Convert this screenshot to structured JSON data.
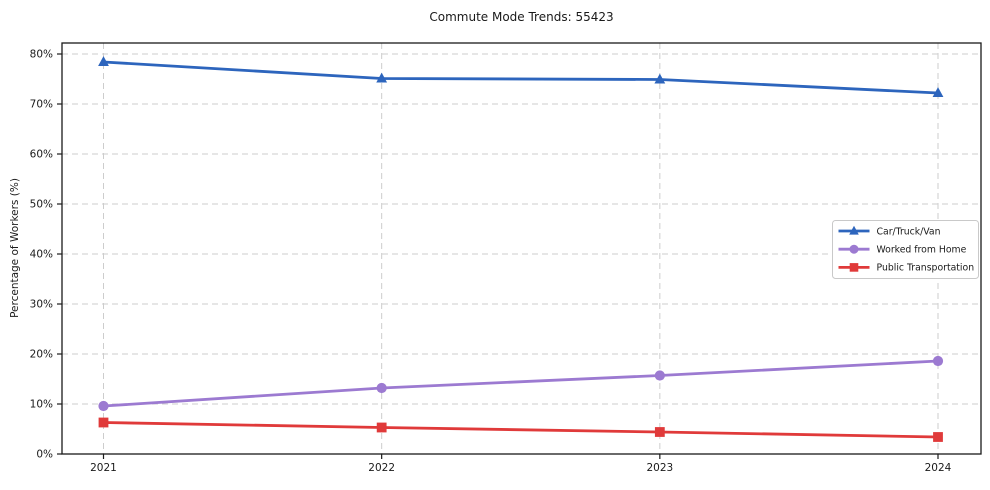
{
  "chart_data": {
    "type": "line",
    "title": "Commute Mode Trends: 55423",
    "xlabel": "",
    "ylabel": "Percentage of Workers (%)",
    "x": [
      "2021",
      "2022",
      "2023",
      "2024"
    ],
    "series": [
      {
        "name": "Car/Truck/Van",
        "color": "#2d65bd",
        "marker": "triangle",
        "values": [
          78.4,
          75.1,
          74.9,
          72.2
        ]
      },
      {
        "name": "Worked from Home",
        "color": "#9c7ad1",
        "marker": "circle",
        "values": [
          9.6,
          13.2,
          15.7,
          18.6
        ]
      },
      {
        "name": "Public Transportation",
        "color": "#e03a3a",
        "marker": "square",
        "values": [
          6.3,
          5.3,
          4.4,
          3.4
        ]
      }
    ],
    "ylim": [
      0,
      82.2
    ],
    "yticks": {
      "values": [
        0,
        10,
        20,
        30,
        40,
        50,
        60,
        70,
        80
      ],
      "labels": [
        "0%",
        "10%",
        "20%",
        "30%",
        "40%",
        "50%",
        "60%",
        "70%",
        "80%"
      ]
    },
    "grid": true,
    "grid_style": "dashed",
    "legend_position": "center-right",
    "colors": {
      "grid": "#cdcdcd",
      "frame": "#1a1a1a",
      "text": "#1a1a1a",
      "legend_border": "#c9c9c9",
      "background": "#ffffff"
    }
  }
}
